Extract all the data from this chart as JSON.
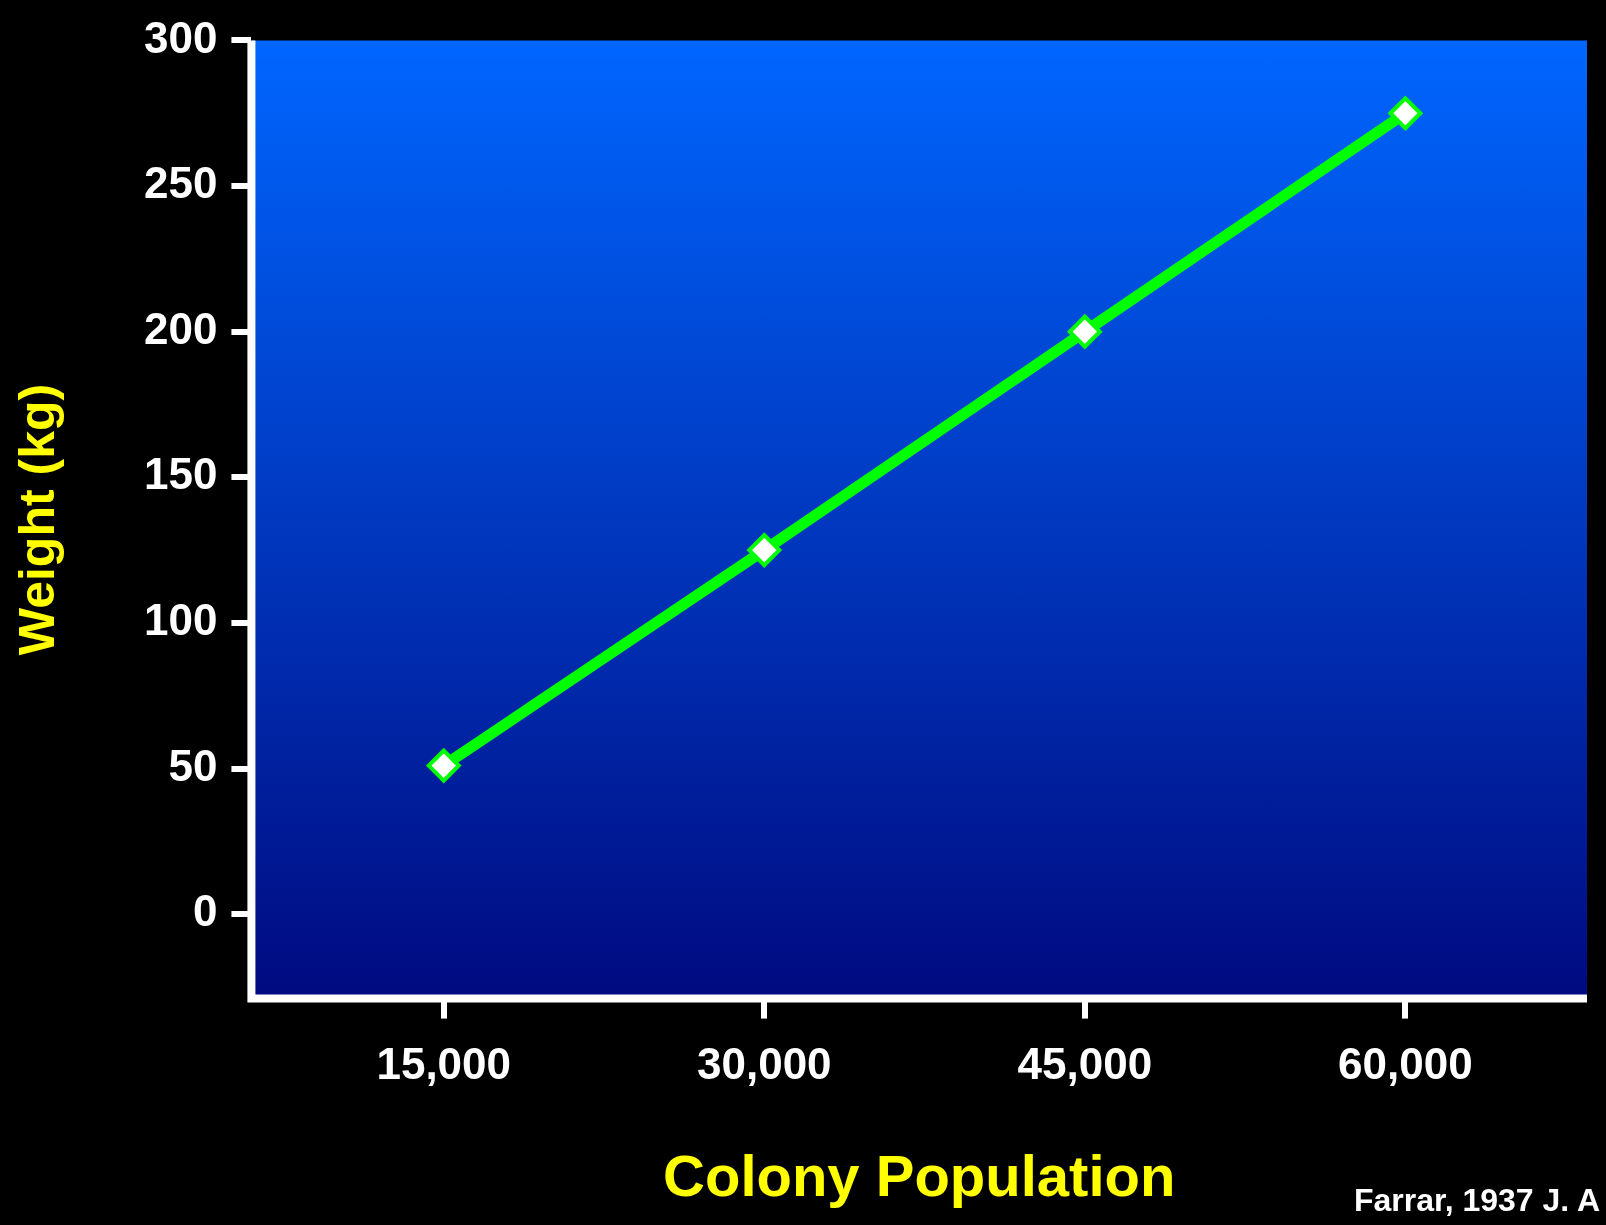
{
  "chart_data": {
    "type": "line",
    "xlabel": "Colony Population",
    "ylabel": "Weight (kg)",
    "x": [
      15000,
      30000,
      45000,
      60000
    ],
    "series": [
      {
        "color": "#00ff00",
        "values": [
          51,
          125,
          200,
          275
        ]
      }
    ],
    "xlim": [
      6000,
      68500
    ],
    "ylim": [
      -29,
      300
    ],
    "xticks": [
      {
        "value": 15000,
        "label": "15,000"
      },
      {
        "value": 30000,
        "label": "30,000"
      },
      {
        "value": 45000,
        "label": "45,000"
      },
      {
        "value": 60000,
        "label": "60,000"
      }
    ],
    "yticks": [
      0,
      50,
      100,
      150,
      200,
      250,
      300
    ],
    "marker": "diamond",
    "grid": false,
    "legend": false,
    "annotations": [
      "Farrar, 1937 J. A"
    ]
  }
}
